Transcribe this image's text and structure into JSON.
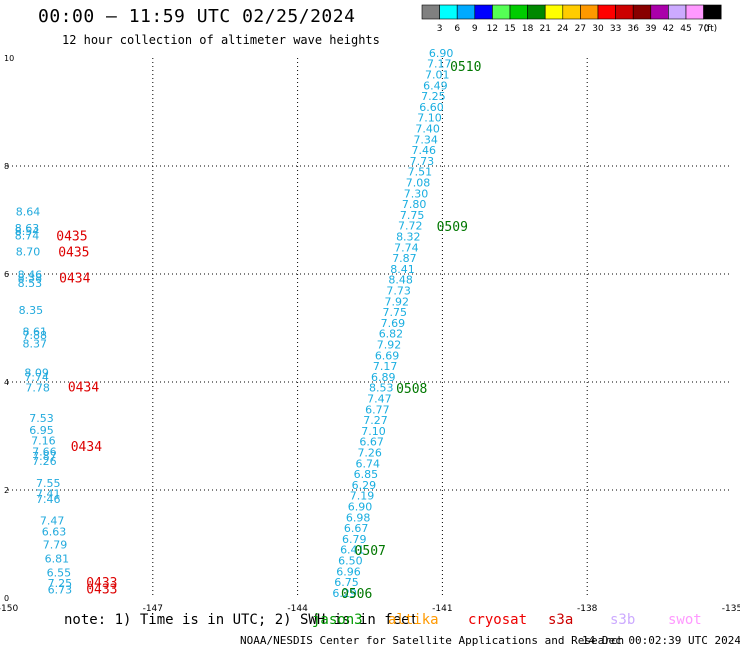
{
  "header": {
    "title": "00:00 – 11:59 UTC 02/25/2024",
    "subtitle": "12 hour collection of altimeter wave heights"
  },
  "colorbar": {
    "unit_label": "(ft)",
    "entries": [
      {
        "label": "3",
        "color": "#808080"
      },
      {
        "label": "6",
        "color": "#00ffff"
      },
      {
        "label": "9",
        "color": "#00aaff"
      },
      {
        "label": "12",
        "color": "#0000ff"
      },
      {
        "label": "15",
        "color": "#55ff55"
      },
      {
        "label": "18",
        "color": "#00cc00"
      },
      {
        "label": "21",
        "color": "#008800"
      },
      {
        "label": "24",
        "color": "#ffff00"
      },
      {
        "label": "27",
        "color": "#ffcc00"
      },
      {
        "label": "30",
        "color": "#ff9900"
      },
      {
        "label": "33",
        "color": "#ff0000"
      },
      {
        "label": "36",
        "color": "#cc0000"
      },
      {
        "label": "39",
        "color": "#880000"
      },
      {
        "label": "42",
        "color": "#aa00aa"
      },
      {
        "label": "45",
        "color": "#ccaaff"
      },
      {
        "label": "70",
        "color": "#ff99ff"
      },
      {
        "label": "",
        "color": "#000000"
      }
    ]
  },
  "axes": {
    "lon_ticks": [
      "-150",
      "-147",
      "-144",
      "-141",
      "-138",
      "-135"
    ],
    "lat_ticks": [
      "0",
      "2",
      "4",
      "6",
      "8",
      "10"
    ],
    "lon_range": [
      -150,
      -135
    ],
    "lat_range": [
      0,
      10
    ]
  },
  "colors": {
    "jason": "#22aadd",
    "jason_time": "#dd0000",
    "track": "#1aaee0",
    "track_time": "#007700",
    "grid": "#000000"
  },
  "tracks": {
    "left_track": {
      "heights": [
        {
          "v": "8.64",
          "lon": -149.84,
          "lat": 7.08
        },
        {
          "v": "8.63",
          "lon": -149.86,
          "lat": 6.78
        },
        {
          "v": "8.54",
          "lon": -149.86,
          "lat": 6.72
        },
        {
          "v": "8.74",
          "lon": -149.86,
          "lat": 6.64
        },
        {
          "v": "8.70",
          "lon": -149.84,
          "lat": 6.34
        },
        {
          "v": "8.46",
          "lon": -149.8,
          "lat": 5.92
        },
        {
          "v": "8.38",
          "lon": -149.8,
          "lat": 5.86
        },
        {
          "v": "8.53",
          "lon": -149.8,
          "lat": 5.76
        },
        {
          "v": "8.35",
          "lon": -149.78,
          "lat": 5.26
        },
        {
          "v": "8.61",
          "lon": -149.7,
          "lat": 4.86
        },
        {
          "v": "7.88",
          "lon": -149.7,
          "lat": 4.8
        },
        {
          "v": "8.37",
          "lon": -149.7,
          "lat": 4.64
        },
        {
          "v": "8.09",
          "lon": -149.66,
          "lat": 4.1
        },
        {
          "v": "7.74",
          "lon": -149.66,
          "lat": 4.02
        },
        {
          "v": "7.78",
          "lon": -149.64,
          "lat": 3.82
        },
        {
          "v": "7.53",
          "lon": -149.56,
          "lat": 3.26
        },
        {
          "v": "6.95",
          "lon": -149.56,
          "lat": 3.04
        },
        {
          "v": "7.16",
          "lon": -149.52,
          "lat": 2.84
        },
        {
          "v": "7.66",
          "lon": -149.5,
          "lat": 2.64
        },
        {
          "v": "7.87",
          "lon": -149.5,
          "lat": 2.56
        },
        {
          "v": "7.26",
          "lon": -149.5,
          "lat": 2.46
        },
        {
          "v": "7.55",
          "lon": -149.42,
          "lat": 2.06
        },
        {
          "v": "7.41",
          "lon": -149.42,
          "lat": 1.86
        },
        {
          "v": "7.46",
          "lon": -149.42,
          "lat": 1.76
        },
        {
          "v": "7.47",
          "lon": -149.34,
          "lat": 1.36
        },
        {
          "v": "6.63",
          "lon": -149.3,
          "lat": 1.16
        },
        {
          "v": "7.79",
          "lon": -149.28,
          "lat": 0.92
        },
        {
          "v": "6.81",
          "lon": -149.24,
          "lat": 0.66
        },
        {
          "v": "6.55",
          "lon": -149.2,
          "lat": 0.4
        },
        {
          "v": "7.25",
          "lon": -149.18,
          "lat": 0.2
        },
        {
          "v": "6.73",
          "lon": -149.18,
          "lat": 0.08
        }
      ],
      "times": [
        {
          "t": "0435",
          "lon": -149.0,
          "lat": 6.62
        },
        {
          "t": "0435",
          "lon": -148.96,
          "lat": 6.32
        },
        {
          "t": "0434",
          "lon": -148.94,
          "lat": 5.84
        },
        {
          "t": "0434",
          "lon": -148.76,
          "lat": 3.82
        },
        {
          "t": "0434",
          "lon": -148.7,
          "lat": 2.72
        },
        {
          "t": "0433",
          "lon": -148.38,
          "lat": 0.2
        },
        {
          "t": "0433",
          "lon": -148.38,
          "lat": 0.08
        }
      ]
    },
    "diagonal_track": {
      "heights": [
        {
          "v": "6.90",
          "lon": -141.28,
          "lat": 10.02
        },
        {
          "v": "7.17",
          "lon": -141.32,
          "lat": 9.82
        },
        {
          "v": "7.01",
          "lon": -141.36,
          "lat": 9.62
        },
        {
          "v": "6.49",
          "lon": -141.4,
          "lat": 9.42
        },
        {
          "v": "7.25",
          "lon": -141.44,
          "lat": 9.22
        },
        {
          "v": "6.60",
          "lon": -141.48,
          "lat": 9.02
        },
        {
          "v": "7.10",
          "lon": -141.52,
          "lat": 8.82
        },
        {
          "v": "7.40",
          "lon": -141.56,
          "lat": 8.62
        },
        {
          "v": "7.34",
          "lon": -141.6,
          "lat": 8.42
        },
        {
          "v": "7.46",
          "lon": -141.64,
          "lat": 8.22
        },
        {
          "v": "7.73",
          "lon": -141.68,
          "lat": 8.02
        },
        {
          "v": "7.51",
          "lon": -141.72,
          "lat": 7.82
        },
        {
          "v": "7.08",
          "lon": -141.76,
          "lat": 7.62
        },
        {
          "v": "7.30",
          "lon": -141.8,
          "lat": 7.42
        },
        {
          "v": "7.80",
          "lon": -141.84,
          "lat": 7.22
        },
        {
          "v": "7.75",
          "lon": -141.88,
          "lat": 7.02
        },
        {
          "v": "7.72",
          "lon": -141.92,
          "lat": 6.82
        },
        {
          "v": "8.32",
          "lon": -141.96,
          "lat": 6.62
        },
        {
          "v": "7.74",
          "lon": -142.0,
          "lat": 6.42
        },
        {
          "v": "7.87",
          "lon": -142.04,
          "lat": 6.22
        },
        {
          "v": "8.41",
          "lon": -142.08,
          "lat": 6.02
        },
        {
          "v": "8.48",
          "lon": -142.12,
          "lat": 5.82
        },
        {
          "v": "7.73",
          "lon": -142.16,
          "lat": 5.62
        },
        {
          "v": "7.92",
          "lon": -142.2,
          "lat": 5.42
        },
        {
          "v": "7.75",
          "lon": -142.24,
          "lat": 5.22
        },
        {
          "v": "7.69",
          "lon": -142.28,
          "lat": 5.02
        },
        {
          "v": "6.82",
          "lon": -142.32,
          "lat": 4.82
        },
        {
          "v": "7.92",
          "lon": -142.36,
          "lat": 4.62
        },
        {
          "v": "6.69",
          "lon": -142.4,
          "lat": 4.42
        },
        {
          "v": "7.17",
          "lon": -142.44,
          "lat": 4.22
        },
        {
          "v": "6.89",
          "lon": -142.48,
          "lat": 4.02
        },
        {
          "v": "8.53",
          "lon": -142.52,
          "lat": 3.82
        },
        {
          "v": "7.47",
          "lon": -142.56,
          "lat": 3.62
        },
        {
          "v": "6.77",
          "lon": -142.6,
          "lat": 3.42
        },
        {
          "v": "7.27",
          "lon": -142.64,
          "lat": 3.22
        },
        {
          "v": "7.10",
          "lon": -142.68,
          "lat": 3.02
        },
        {
          "v": "6.67",
          "lon": -142.72,
          "lat": 2.82
        },
        {
          "v": "7.26",
          "lon": -142.76,
          "lat": 2.62
        },
        {
          "v": "6.74",
          "lon": -142.8,
          "lat": 2.42
        },
        {
          "v": "6.85",
          "lon": -142.84,
          "lat": 2.22
        },
        {
          "v": "6.29",
          "lon": -142.88,
          "lat": 2.02
        },
        {
          "v": "7.19",
          "lon": -142.92,
          "lat": 1.82
        },
        {
          "v": "6.90",
          "lon": -142.96,
          "lat": 1.62
        },
        {
          "v": "6.98",
          "lon": -143.0,
          "lat": 1.42
        },
        {
          "v": "6.67",
          "lon": -143.04,
          "lat": 1.22
        },
        {
          "v": "6.79",
          "lon": -143.08,
          "lat": 1.02
        },
        {
          "v": "6.41",
          "lon": -143.12,
          "lat": 0.82
        },
        {
          "v": "6.50",
          "lon": -143.16,
          "lat": 0.62
        },
        {
          "v": "6.96",
          "lon": -143.2,
          "lat": 0.42
        },
        {
          "v": "6.75",
          "lon": -143.24,
          "lat": 0.22
        },
        {
          "v": "6.29",
          "lon": -143.28,
          "lat": 0.02
        }
      ],
      "times": [
        {
          "t": "0510",
          "lon": -140.84,
          "lat": 9.76
        },
        {
          "t": "0509",
          "lon": -141.12,
          "lat": 6.8
        },
        {
          "t": "0508",
          "lon": -141.96,
          "lat": 3.8
        },
        {
          "t": "0507",
          "lon": -142.82,
          "lat": 0.8
        },
        {
          "t": "0506",
          "lon": -143.1,
          "lat": 0.0
        }
      ]
    }
  },
  "footer": {
    "note": "note: 1) Time is in UTC; 2) SWH is in feet",
    "credit": "NOAA/NESDIS Center for Satellite Applications and Research",
    "stamp": "14 Dec 00:02:39 UTC 2024"
  },
  "legend": [
    {
      "name": "jason3",
      "color": "#009900"
    },
    {
      "name": "altika",
      "color": "#ff9900"
    },
    {
      "name": "cryosat",
      "color": "#ee0000"
    },
    {
      "name": "s3a",
      "color": "#cc0000"
    },
    {
      "name": "s3b",
      "color": "#ccaaff"
    },
    {
      "name": "swot",
      "color": "#ff99ff"
    }
  ]
}
